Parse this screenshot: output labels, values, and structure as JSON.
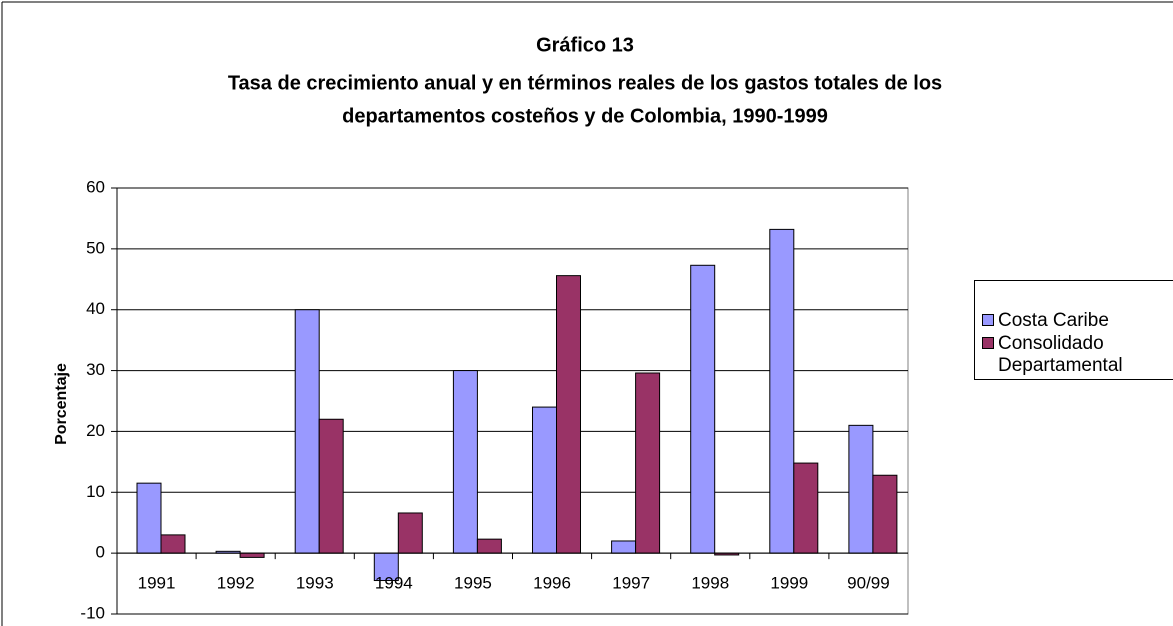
{
  "chart_data": {
    "type": "bar",
    "title": "Gráfico 13",
    "subtitle": [
      "Tasa de crecimiento anual y en términos reales de los gastos totales de los",
      "departamentos costeños y de Colombia, 1990-1999"
    ],
    "y_label": "Porcentaje",
    "categories": [
      "1991",
      "1992",
      "1993",
      "1994",
      "1995",
      "1996",
      "1997",
      "1998",
      "1999",
      "90/99"
    ],
    "series": [
      {
        "name": "Costa Caribe",
        "color": "#9999ff",
        "values": [
          11.5,
          0.3,
          40,
          -4.5,
          30,
          24,
          2,
          47.3,
          53.2,
          21
        ]
      },
      {
        "name": "Consolidado Departamental",
        "color": "#993366",
        "values": [
          3,
          -0.7,
          22,
          6.6,
          2.3,
          45.6,
          29.6,
          -0.3,
          14.8,
          12.8
        ]
      }
    ],
    "ylim": [
      -10,
      60
    ],
    "yticks": [
      -10,
      0,
      10,
      20,
      30,
      40,
      50,
      60
    ],
    "grid": true,
    "legend": "right"
  }
}
